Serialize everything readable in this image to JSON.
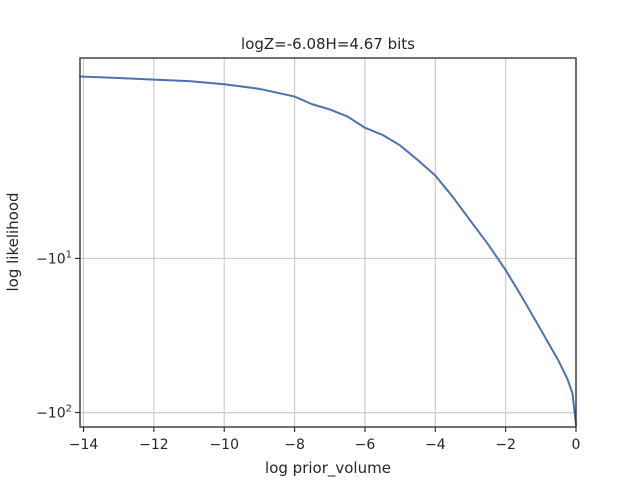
{
  "chart_data": {
    "type": "line",
    "title": "logZ=-6.08H=4.67 bits",
    "xlabel": "log prior_volume",
    "ylabel": "log likelihood",
    "xlim": [
      -14.1,
      0.0
    ],
    "ylim": [
      -124,
      -0.7
    ],
    "yscale": "symlog",
    "grid": true,
    "x_ticks": [
      {
        "value": -14,
        "label": "−14"
      },
      {
        "value": -12,
        "label": "−12"
      },
      {
        "value": -10,
        "label": "−10"
      },
      {
        "value": -8,
        "label": "−8"
      },
      {
        "value": -6,
        "label": "−6"
      },
      {
        "value": -4,
        "label": "−4"
      },
      {
        "value": -2,
        "label": "−2"
      },
      {
        "value": 0,
        "label": "0"
      }
    ],
    "y_ticks": [
      {
        "value": -10,
        "label": "−10",
        "exponent": "1"
      },
      {
        "value": -100,
        "label": "−10",
        "exponent": "2"
      }
    ],
    "series": [
      {
        "color": "#4c72b0",
        "x": [
          -14.1,
          -13.0,
          -12.0,
          -11.0,
          -10.0,
          -9.0,
          -8.0,
          -7.5,
          -7.0,
          -6.5,
          -6.0,
          -5.5,
          -5.0,
          -4.5,
          -4.0,
          -3.5,
          -3.0,
          -2.5,
          -2.0,
          -1.5,
          -1.0,
          -0.5,
          -0.25,
          -0.1,
          0.0
        ],
        "y": [
          -0.82,
          -0.83,
          -0.84,
          -0.85,
          -0.87,
          -0.9,
          -0.95,
          -1.0,
          -1.08,
          -1.2,
          -1.42,
          -1.58,
          -1.85,
          -2.3,
          -2.9,
          -4.0,
          -5.7,
          -8.1,
          -11.9,
          -18.4,
          -29.0,
          -46.0,
          -60.0,
          -75.0,
          -120.0
        ]
      }
    ]
  }
}
